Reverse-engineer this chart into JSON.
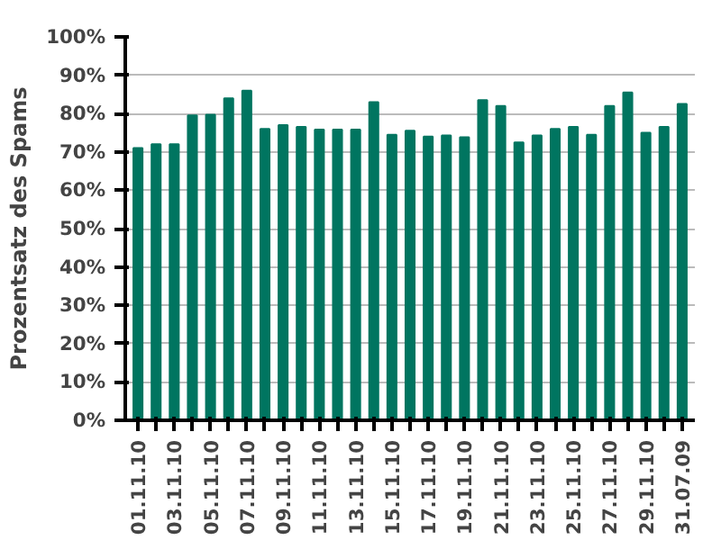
{
  "chart_data": {
    "type": "bar",
    "ylabel": "Prozentsatz des Spams",
    "categories": [
      "01.11.10",
      null,
      "03.11.10",
      null,
      "05.11.10",
      null,
      "07.11.10",
      null,
      "09.11.10",
      null,
      "11.11.10",
      null,
      "13.11.10",
      null,
      "15.11.10",
      null,
      "17.11.10",
      null,
      "19.11.10",
      null,
      "21.11.10",
      null,
      "23.11.10",
      null,
      "25.11.10",
      null,
      "27.11.10",
      null,
      "29.11.10",
      null,
      "31.07.09"
    ],
    "values": [
      71,
      72,
      72,
      79.5,
      79.7,
      84,
      86,
      76,
      77,
      76.5,
      75.8,
      75.8,
      75.8,
      83,
      74.5,
      75.5,
      74,
      74.3,
      73.8,
      83.5,
      82,
      72.5,
      74.3,
      76,
      76.5,
      74.5,
      82,
      85.5,
      75,
      76.5,
      82.5
    ],
    "color": "#007560",
    "ylim": [
      0,
      100
    ],
    "yticks": [
      {
        "value": 0,
        "label": "0%"
      },
      {
        "value": 10,
        "label": "10%"
      },
      {
        "value": 20,
        "label": "20%"
      },
      {
        "value": 30,
        "label": "30%"
      },
      {
        "value": 40,
        "label": "40%"
      },
      {
        "value": 50,
        "label": "50%"
      },
      {
        "value": 60,
        "label": "60%"
      },
      {
        "value": 70,
        "label": "70%"
      },
      {
        "value": 80,
        "label": "80%"
      },
      {
        "value": 90,
        "label": "90%"
      },
      {
        "value": 100,
        "label": "100%"
      }
    ],
    "grid": "y"
  }
}
